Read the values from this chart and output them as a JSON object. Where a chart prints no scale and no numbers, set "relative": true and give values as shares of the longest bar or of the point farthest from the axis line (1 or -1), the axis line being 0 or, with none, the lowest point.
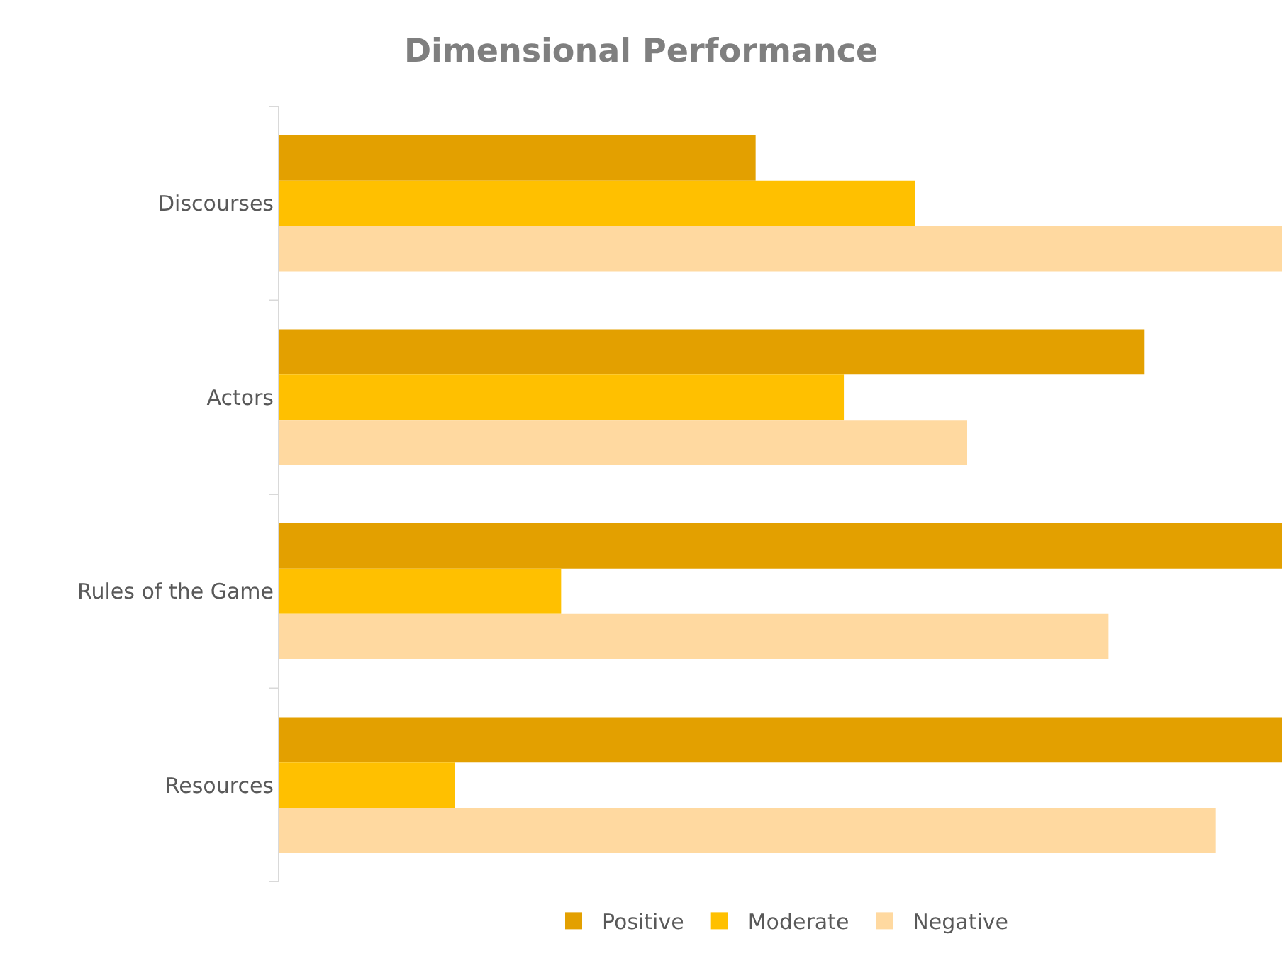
{
  "chart_data": {
    "type": "bar",
    "orientation": "horizontal",
    "relative": true,
    "title": "Dimensional Performance",
    "categories": [
      "Discourses",
      "Actors",
      "Rules of the Game",
      "Resources"
    ],
    "series": [
      {
        "name": "Positive",
        "color": "#e3a000",
        "values": [
          0.475,
          0.863,
          1,
          1
        ]
      },
      {
        "name": "Moderate",
        "color": "#ffc000",
        "values": [
          0.634,
          0.563,
          0.281,
          0.175
        ]
      },
      {
        "name": "Negative",
        "color": "#ffd9a0",
        "values": [
          1,
          0.686,
          0.827,
          0.934
        ]
      }
    ],
    "legend": "bottom"
  }
}
